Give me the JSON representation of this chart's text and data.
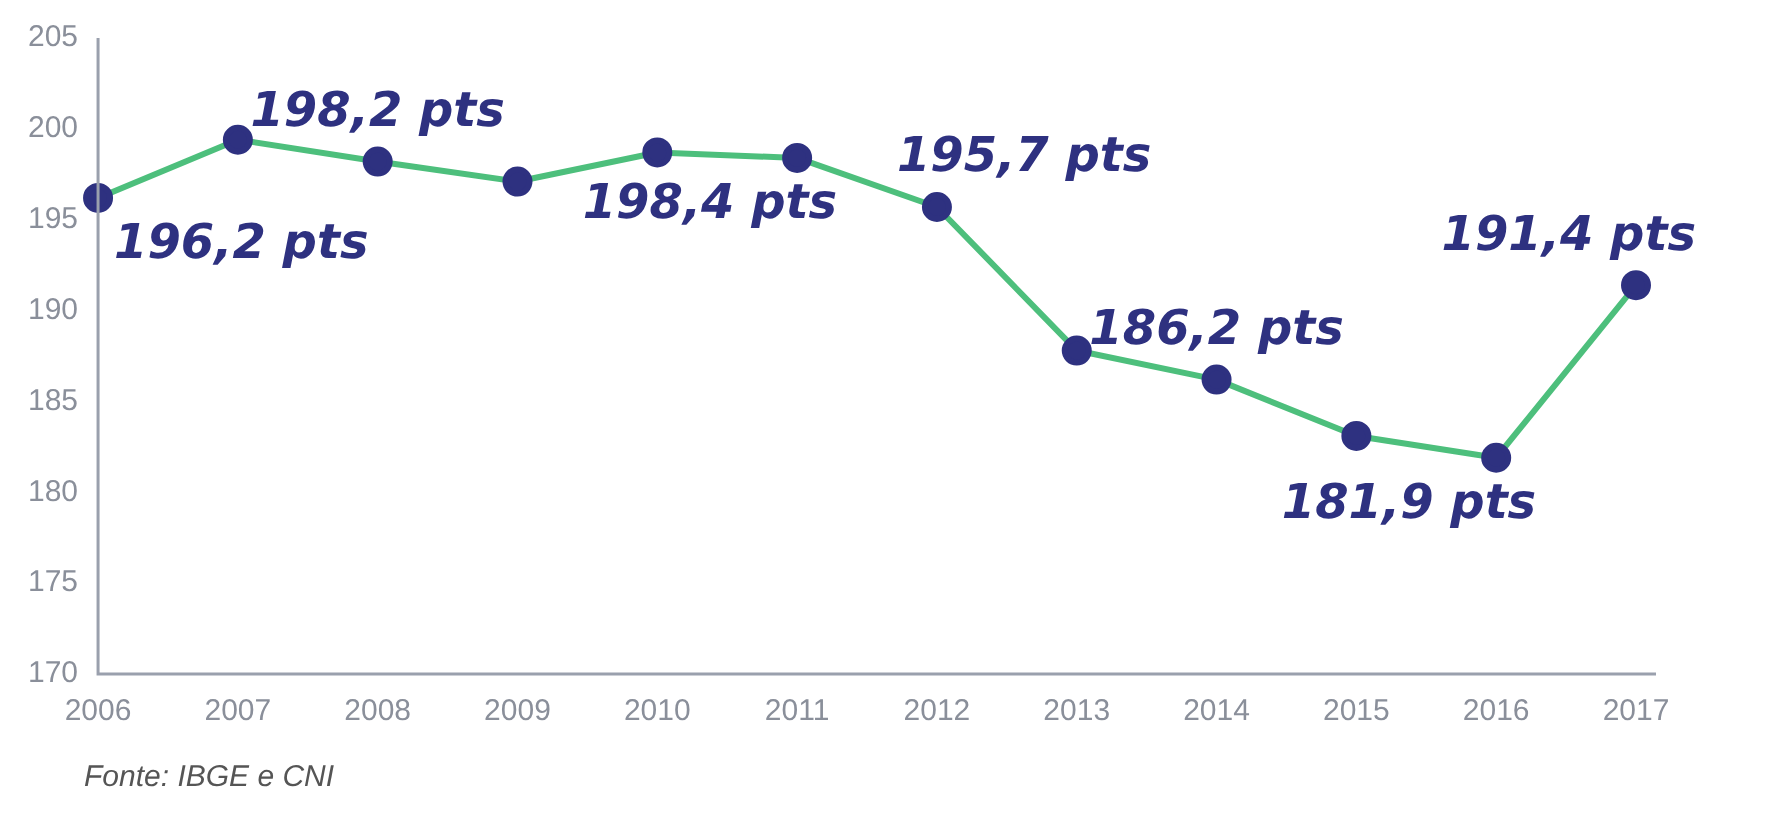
{
  "chart_data": {
    "type": "line",
    "categories": [
      "2006",
      "2007",
      "2008",
      "2009",
      "2010",
      "2011",
      "2012",
      "2013",
      "2014",
      "2015",
      "2016",
      "2017"
    ],
    "series": [
      {
        "color": "#4dbf7c",
        "colors": [
          "#2e3180",
          "#2e3180",
          "#2e3180",
          "#2e3180",
          "#2e3180",
          "#2e3180",
          "#2e3180",
          "#2e3180",
          "#2e3180",
          "#2e3180",
          "#2e3180",
          "#2e3180"
        ],
        "values": [
          196.2,
          199.4,
          198.2,
          197.1,
          198.7,
          198.4,
          195.7,
          187.8,
          186.2,
          183.1,
          181.9,
          191.4
        ],
        "value_labels": [
          "196,2 pts",
          null,
          "198,2 pts",
          null,
          null,
          "198,4 pts",
          "195,7 pts",
          null,
          "186,2 pts",
          null,
          "181,9 pts",
          "191,4 pts"
        ]
      }
    ],
    "ylim": [
      170,
      205
    ],
    "yticks": [
      170,
      175,
      180,
      185,
      190,
      195,
      200,
      205
    ],
    "grid": false,
    "legend": false,
    "marker": "circle",
    "line_style": "solid",
    "annotations": [
      "Fonte: IBGE e CNI"
    ]
  }
}
